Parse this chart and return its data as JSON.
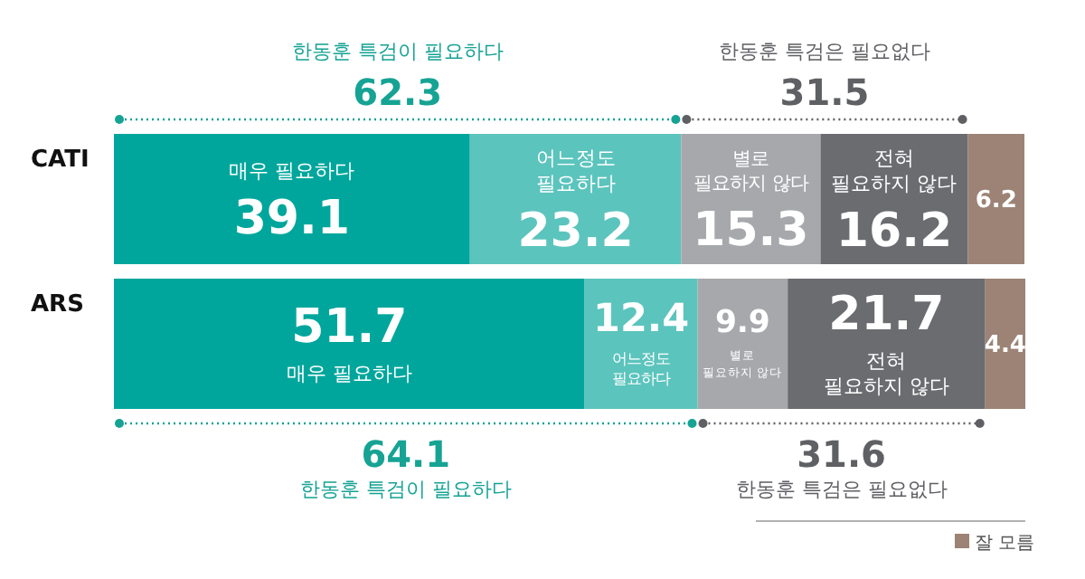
{
  "chart_data": {
    "type": "bar",
    "orientation": "horizontal",
    "stacked": true,
    "categories": [
      "CATI",
      "ARS"
    ],
    "series": [
      {
        "name": "매우 필요하다",
        "color": "#00a69c",
        "values": [
          39.1,
          51.7
        ]
      },
      {
        "name": "어느정도 필요하다",
        "color": "#5bc4bd",
        "values": [
          23.2,
          12.4
        ]
      },
      {
        "name": "별로 필요하지 않다",
        "color": "#a7a8ac",
        "values": [
          15.3,
          9.9
        ]
      },
      {
        "name": "전혀 필요하지 않다",
        "color": "#6b6c70",
        "values": [
          16.2,
          21.7
        ]
      },
      {
        "name": "잘 모름",
        "color": "#9c8375",
        "values": [
          6.2,
          4.4
        ]
      }
    ],
    "xlim": [
      0,
      100.1
    ],
    "tick_labels": "y",
    "data_labels": true,
    "legend": "bottom right",
    "grid": false,
    "annotations": [
      "한동훈 특검이 필요하다",
      "62.3",
      "한동훈 특검은 필요없다",
      "31.5",
      "64.1",
      "한동훈 특검이 필요하다",
      "31.6",
      "한동훈 특검은 필요없다"
    ]
  }
}
